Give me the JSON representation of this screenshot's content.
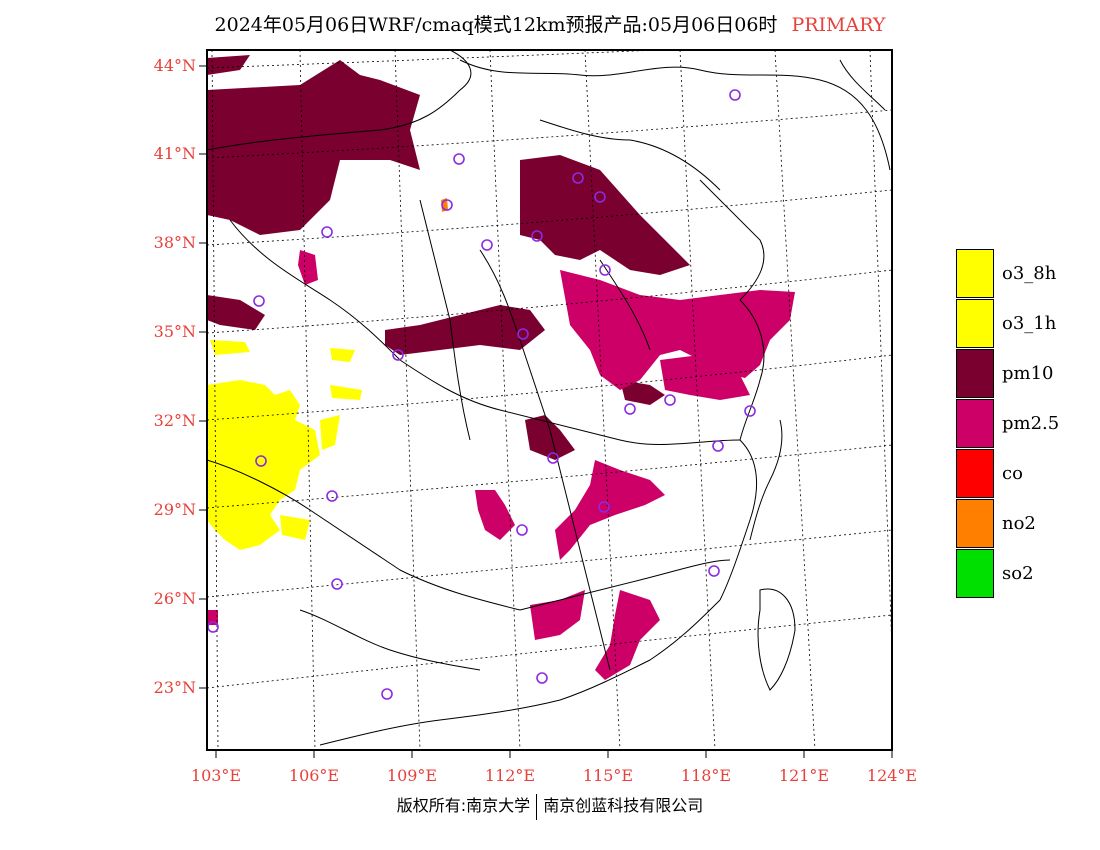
{
  "title": {
    "main": "2024年05月06日WRF/cmaq模式12km预报产品:05月06日06时",
    "tag": "PRIMARY"
  },
  "axes": {
    "lat_labels": [
      "44°N",
      "41°N",
      "38°N",
      "35°N",
      "32°N",
      "29°N",
      "26°N",
      "23°N"
    ],
    "lon_labels": [
      "103°E",
      "106°E",
      "109°E",
      "112°E",
      "115°E",
      "118°E",
      "121°E",
      "124°E"
    ]
  },
  "legend": [
    {
      "label": "o3_8h",
      "color": "#ffff00"
    },
    {
      "label": "o3_1h",
      "color": "#ffff00"
    },
    {
      "label": "pm10",
      "color": "#7a0030"
    },
    {
      "label": "pm2.5",
      "color": "#cc0066"
    },
    {
      "label": "co",
      "color": "#ff0000"
    },
    {
      "label": "no2",
      "color": "#ff8000"
    },
    {
      "label": "so2",
      "color": "#00e000"
    }
  ],
  "copyright": {
    "left": "版权所有:南京大学",
    "right": "南京创蓝科技有限公司"
  },
  "colors": {
    "label_red": "#e8403a",
    "pm10": "#7a0030",
    "pm25": "#cc0066",
    "o3": "#ffff00",
    "no2": "#ff8000",
    "station": "#8a2be2"
  }
}
